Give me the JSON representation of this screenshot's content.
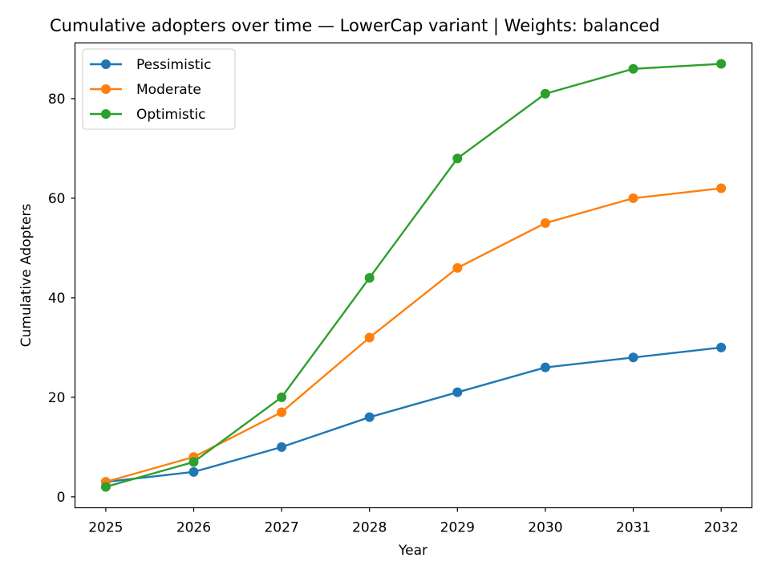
{
  "chart_data": {
    "type": "line",
    "title": "Cumulative adopters over time — LowerCap variant | Weights: balanced",
    "xlabel": "Year",
    "ylabel": "Cumulative Adopters",
    "x": [
      2025,
      2026,
      2027,
      2028,
      2029,
      2030,
      2031,
      2032
    ],
    "xticks": [
      "2025",
      "2026",
      "2027",
      "2028",
      "2029",
      "2030",
      "2031",
      "2032"
    ],
    "yticks": [
      "0",
      "20",
      "40",
      "60",
      "80"
    ],
    "xlim": [
      2024.65,
      2032.35
    ],
    "ylim": [
      -2.2,
      91.2
    ],
    "grid": false,
    "legend_position": "top-left",
    "series": [
      {
        "name": "Pessimistic",
        "color": "#1f77b4",
        "marker": "circle",
        "values": [
          3,
          5,
          10,
          16,
          21,
          26,
          28,
          30
        ]
      },
      {
        "name": "Moderate",
        "color": "#ff7f0e",
        "marker": "circle",
        "values": [
          3,
          8,
          17,
          32,
          46,
          55,
          60,
          62
        ]
      },
      {
        "name": "Optimistic",
        "color": "#2ca02c",
        "marker": "circle",
        "values": [
          2,
          7,
          20,
          44,
          68,
          81,
          86,
          87
        ]
      }
    ]
  }
}
